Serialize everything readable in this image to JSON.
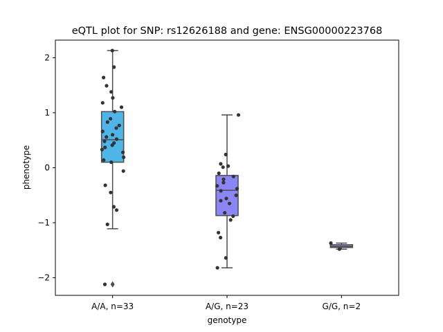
{
  "chart_data": {
    "type": "box",
    "title": "eQTL plot for SNP: rs12626188 and gene: ENSG00000223768",
    "xlabel": "genotype",
    "ylabel": "phenotype",
    "ylim": [
      -2.32,
      2.32
    ],
    "yticks": [
      2,
      1,
      0,
      -1,
      -2
    ],
    "ytick_labels": [
      "2",
      "1",
      "0",
      "−1",
      "−2"
    ],
    "categories": [
      "A/A, n=33",
      "A/G, n=23",
      "G/G, n=2"
    ],
    "boxes": [
      {
        "category": "A/A, n=33",
        "color": "#4fb4e8",
        "q1": 0.1,
        "median": 0.51,
        "q3": 1.02,
        "whisker_low": -1.11,
        "whisker_high": 2.13,
        "fliers": [
          -2.12
        ],
        "points": [
          2.13,
          1.83,
          1.64,
          1.49,
          1.38,
          1.27,
          1.18,
          1.1,
          1.02,
          0.89,
          0.83,
          0.77,
          0.72,
          0.66,
          0.6,
          0.56,
          0.52,
          0.48,
          0.45,
          0.41,
          0.37,
          0.33,
          0.28,
          0.19,
          0.14,
          0.1,
          -0.06,
          -0.32,
          -0.45,
          -0.71,
          -0.77,
          -1.03,
          -2.12
        ]
      },
      {
        "category": "A/G, n=23",
        "color": "#8a86f5",
        "q1": -0.87,
        "median": -0.41,
        "q3": -0.14,
        "whisker_low": -1.82,
        "whisker_high": 0.96,
        "fliers": [],
        "points": [
          0.96,
          0.24,
          0.07,
          0.03,
          0.01,
          -0.1,
          -0.16,
          -0.21,
          -0.27,
          -0.33,
          -0.38,
          -0.42,
          -0.5,
          -0.56,
          -0.6,
          -0.65,
          -0.82,
          -0.88,
          -0.95,
          -1.18,
          -1.27,
          -1.64,
          -1.82
        ]
      },
      {
        "category": "G/G, n=2",
        "color": "#8a86f5",
        "q1": -1.45,
        "median": -1.43,
        "q3": -1.4,
        "whisker_low": -1.48,
        "whisker_high": -1.37,
        "fliers": [],
        "points": [
          -1.37,
          -1.48
        ]
      }
    ],
    "grid": false,
    "legend": "none"
  }
}
